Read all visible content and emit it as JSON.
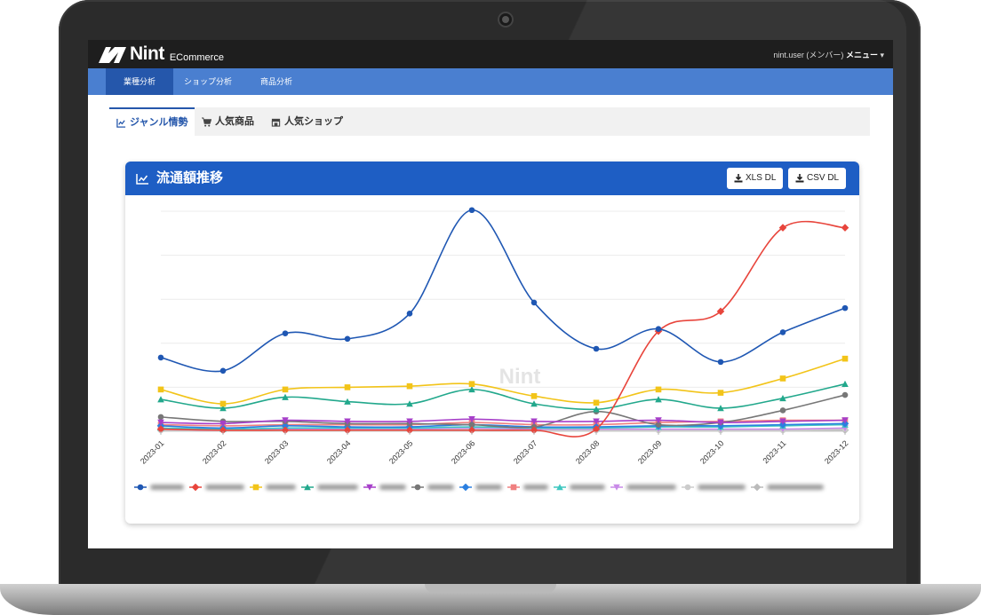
{
  "app": {
    "logo_text": "Nint",
    "logo_sub": "ECommerce",
    "user": "nint.user (メンバー)",
    "menu_label": "メニュー"
  },
  "nav": {
    "items": [
      {
        "label": "業種分析",
        "active": true
      },
      {
        "label": "ショップ分析",
        "active": false
      },
      {
        "label": "商品分析",
        "active": false
      }
    ]
  },
  "tabs": [
    {
      "label": "ジャンル情勢",
      "icon": "line-chart-icon",
      "active": true
    },
    {
      "label": "人気商品",
      "icon": "cart-icon",
      "active": false
    },
    {
      "label": "人気ショップ",
      "icon": "shop-icon",
      "active": false
    }
  ],
  "card": {
    "title": "流通額推移",
    "xls_label": "XLS DL",
    "csv_label": "CSV DL"
  },
  "colors": {
    "primary": "#1e5ec4",
    "nav": "#4a7fd0",
    "nav_active": "#2557ab"
  },
  "chart_data": {
    "type": "line",
    "watermark": "Nint",
    "x": [
      "2023-01",
      "2023-02",
      "2023-03",
      "2023-04",
      "2023-05",
      "2023-06",
      "2023-07",
      "2023-08",
      "2023-09",
      "2023-10",
      "2023-11",
      "2023-12"
    ],
    "ylim": [
      0,
      100
    ],
    "grid": true,
    "legend_position": "bottom",
    "series": [
      {
        "color": "#1f57b3",
        "marker": "circle",
        "values": [
          33.5,
          27.5,
          44.5,
          42,
          53.5,
          100.5,
          58.5,
          37.5,
          46.5,
          31.5,
          45,
          56
        ]
      },
      {
        "color": "#e8453c",
        "marker": "diamond",
        "values": [
          1,
          0.5,
          0.5,
          0.5,
          0.5,
          0.5,
          0.5,
          1,
          45.5,
          54.5,
          92.5,
          92.5
        ]
      },
      {
        "color": "#f2c419",
        "marker": "square",
        "values": [
          19,
          12.5,
          19,
          20,
          20.5,
          21.5,
          16,
          13,
          19,
          17.5,
          24,
          33
        ]
      },
      {
        "color": "#22a88c",
        "marker": "triangle",
        "values": [
          14.5,
          10.5,
          15.5,
          13.5,
          12.5,
          19,
          12.5,
          10,
          14.5,
          10.5,
          15,
          21.5
        ]
      },
      {
        "color": "#a63fc9",
        "marker": "triangle-down",
        "values": [
          4,
          3.5,
          5,
          4.5,
          4.5,
          5.5,
          4.5,
          4.5,
          5,
          4,
          4.5,
          5
        ]
      },
      {
        "color": "#777777",
        "marker": "circle",
        "values": [
          6.5,
          4.5,
          4.5,
          3.5,
          3.5,
          3,
          2,
          9,
          3,
          4,
          9.5,
          16.5
        ]
      },
      {
        "color": "#2b7fe0",
        "marker": "diamond",
        "values": [
          2.5,
          1.5,
          2.5,
          2,
          2,
          3,
          2,
          2,
          2.5,
          2.5,
          3,
          3.5
        ]
      },
      {
        "color": "#f08080",
        "marker": "square",
        "values": [
          3,
          2.5,
          3,
          3,
          3,
          4,
          3,
          3,
          4,
          4.5,
          5,
          5
        ]
      },
      {
        "color": "#3fc7c0",
        "marker": "triangle",
        "values": [
          1.5,
          1,
          1.5,
          1.5,
          1.5,
          2,
          1.5,
          1.5,
          2,
          2,
          2.5,
          3
        ]
      },
      {
        "color": "#c98be8",
        "marker": "triangle-down",
        "values": [
          1,
          0.5,
          1,
          1,
          1,
          1.5,
          1,
          1,
          1,
          1,
          1,
          1.5
        ]
      },
      {
        "color": "#cccccc",
        "marker": "circle",
        "values": [
          0.5,
          0.5,
          0.5,
          0.5,
          0.5,
          1,
          0.5,
          0.5,
          0.5,
          0.5,
          0.5,
          1
        ]
      },
      {
        "color": "#bbbbbb",
        "marker": "diamond",
        "values": [
          0.5,
          0.5,
          0.5,
          0.5,
          0.5,
          0.5,
          0.5,
          0.5,
          0.5,
          0.5,
          0.5,
          0.5
        ]
      }
    ]
  }
}
